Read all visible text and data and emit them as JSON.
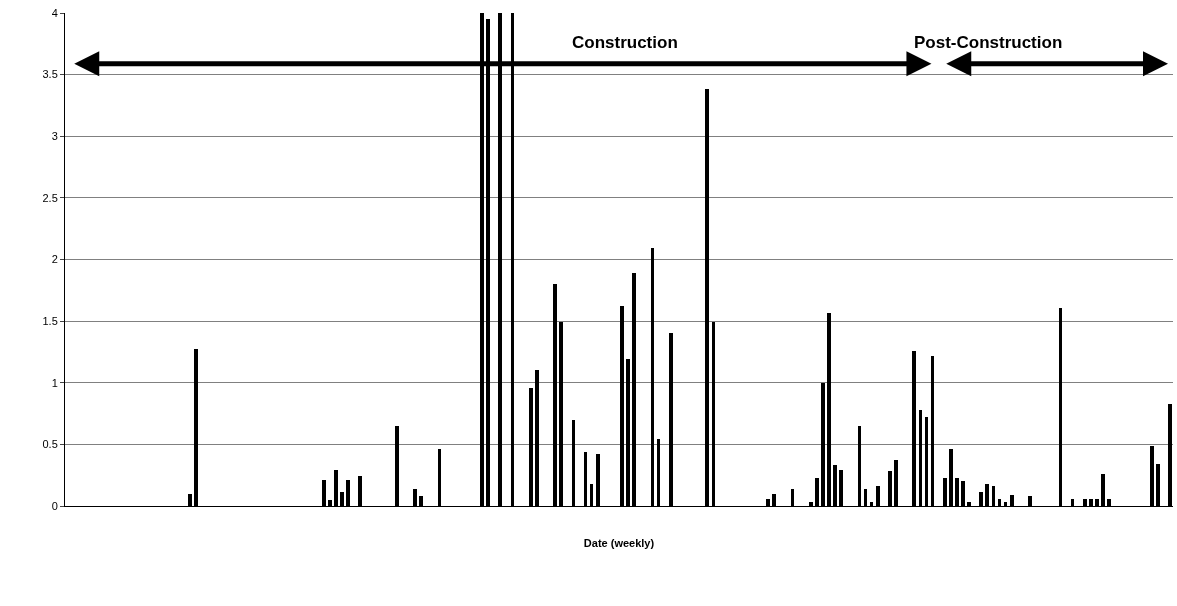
{
  "chart_data": {
    "type": "bar",
    "xlabel": "Date (weekly)",
    "categories": [
      null,
      null,
      null,
      null,
      null,
      null,
      null,
      null,
      null,
      null,
      null,
      null,
      null,
      null,
      null,
      null,
      null,
      null,
      null,
      null,
      null,
      null,
      null,
      null,
      null,
      null,
      null,
      null,
      null,
      null,
      null,
      null,
      null,
      null,
      null,
      null,
      null,
      null,
      null,
      null,
      null,
      null,
      null,
      null,
      null,
      null,
      null,
      null,
      null,
      null,
      null,
      null,
      null,
      null,
      null,
      null,
      null,
      null,
      null,
      null,
      null,
      null,
      null,
      null,
      null,
      null,
      null,
      null,
      null,
      null,
      null,
      null,
      null,
      null,
      null,
      null,
      null,
      null,
      null,
      null,
      null,
      null,
      null,
      null,
      null,
      null,
      null,
      null,
      null,
      null,
      null,
      null,
      null,
      null,
      null,
      null,
      null,
      null,
      null,
      null,
      null,
      null,
      null,
      null,
      null,
      null,
      null,
      null,
      null,
      null,
      null,
      null,
      null,
      null,
      null,
      null,
      null,
      null,
      null,
      null,
      null,
      null,
      null,
      null,
      null,
      null,
      null,
      null,
      null,
      null,
      null,
      null,
      null,
      null,
      null,
      null,
      null,
      null,
      null,
      null,
      null,
      null,
      null,
      null,
      null,
      null,
      null,
      null,
      null,
      null,
      null,
      null,
      null,
      null,
      null,
      null,
      null,
      null,
      null,
      null,
      null,
      null,
      null,
      null,
      null,
      null,
      null,
      null,
      null,
      null,
      null,
      null,
      null,
      null,
      null,
      null,
      null,
      null,
      null,
      null,
      null,
      null
    ],
    "values": [
      null,
      null,
      null,
      null,
      null,
      null,
      null,
      null,
      null,
      null,
      null,
      null,
      null,
      null,
      null,
      null,
      null,
      null,
      null,
      null,
      0.1,
      1.27,
      null,
      null,
      null,
      null,
      null,
      null,
      null,
      null,
      null,
      null,
      null,
      null,
      null,
      null,
      null,
      null,
      null,
      null,
      null,
      null,
      0.21,
      0.05,
      0.29,
      0.11,
      0.21,
      null,
      0.24,
      null,
      null,
      null,
      null,
      null,
      0.65,
      null,
      null,
      0.14,
      0.08,
      null,
      null,
      0.46,
      null,
      null,
      null,
      null,
      null,
      null,
      4,
      3.95,
      null,
      4,
      null,
      4,
      null,
      null,
      0.96,
      1.1,
      null,
      null,
      1.8,
      1.49,
      null,
      0.7,
      null,
      0.44,
      0.18,
      0.42,
      null,
      null,
      null,
      1.62,
      1.19,
      1.89,
      null,
      null,
      2.09,
      0.54,
      null,
      1.4,
      null,
      null,
      null,
      null,
      null,
      3.38,
      1.49,
      null,
      null,
      null,
      null,
      null,
      null,
      null,
      null,
      0.06,
      0.1,
      null,
      null,
      0.14,
      null,
      null,
      0.03,
      0.23,
      1,
      1.57,
      0.33,
      0.29,
      null,
      null,
      0.65,
      0.14,
      0.03,
      0.16,
      null,
      0.28,
      0.37,
      null,
      null,
      1.26,
      0.78,
      0.72,
      1.22,
      null,
      0.23,
      0.46,
      0.23,
      0.2,
      0.03,
      null,
      0.11,
      0.18,
      0.16,
      0.06,
      0.03,
      0.09,
      null,
      null,
      0.08,
      null,
      null,
      null,
      null,
      1.61,
      null,
      0.06,
      null,
      0.06,
      0.06,
      0.06,
      0.26,
      0.06,
      null,
      null,
      null,
      null,
      null,
      null,
      0.49,
      0.34,
      null,
      0.83
    ],
    "color": "#000000",
    "ylim": [
      0,
      4
    ],
    "yticks": [
      0,
      0.5,
      1,
      1.5,
      2,
      2.5,
      3,
      3.5,
      4
    ],
    "grid": "y",
    "annotations": [
      "Construction",
      "Post-Construction"
    ]
  }
}
